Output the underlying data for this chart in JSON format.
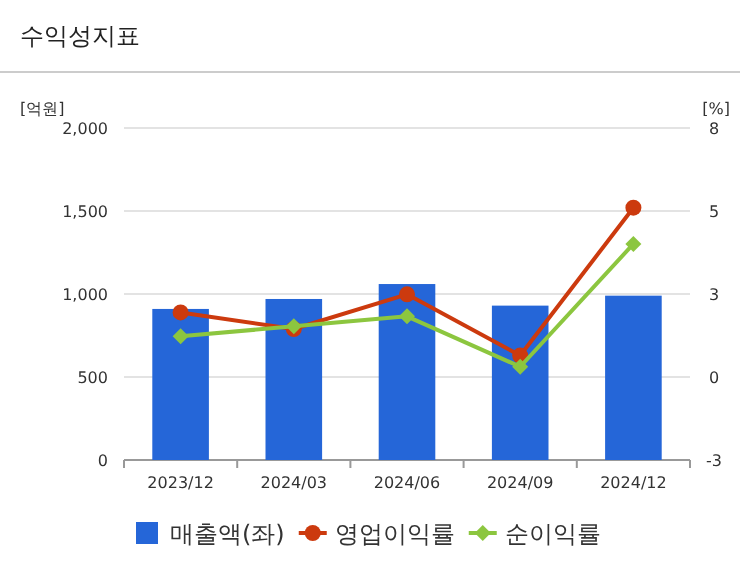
{
  "chart_data": {
    "type": "bar",
    "title": "수익성지표",
    "ylabel": "[억원]",
    "y2label": "[%]",
    "categories": [
      "2023/12",
      "2024/03",
      "2024/06",
      "2024/09",
      "2024/12"
    ],
    "series": [
      {
        "name": "매출액(좌)",
        "color": "#2566d8",
        "values": [
          910,
          970,
          1060,
          930,
          990
        ]
      },
      {
        "name": "영업이익률",
        "type": "line",
        "axis": "y2",
        "marker": "circle",
        "color": "#cc3a0e",
        "values": [
          1.89,
          1.34,
          2.49,
          0.46,
          5.36
        ]
      },
      {
        "name": "순이익률",
        "type": "line",
        "axis": "y2",
        "marker": "diamond",
        "color": "#8cc63f",
        "values": [
          1.1,
          1.43,
          1.76,
          0.09,
          4.16
        ]
      }
    ],
    "ylim": [
      0,
      2000
    ],
    "yticks": [
      {
        "value": 0,
        "label": "0"
      },
      {
        "value": 500,
        "label": "500"
      },
      {
        "value": 1000,
        "label": "1,000"
      },
      {
        "value": 1500,
        "label": "1,500"
      },
      {
        "value": 2000,
        "label": "2,000"
      }
    ],
    "y2lim": [
      -3,
      8
    ],
    "y2ticks": [
      -3,
      {
        "value": -0.25,
        "label": "0"
      },
      {
        "value": 2.5,
        "label": "3"
      },
      {
        "value": 5.25,
        "label": "5"
      },
      8
    ],
    "grid": "y",
    "legend": "bottom"
  }
}
